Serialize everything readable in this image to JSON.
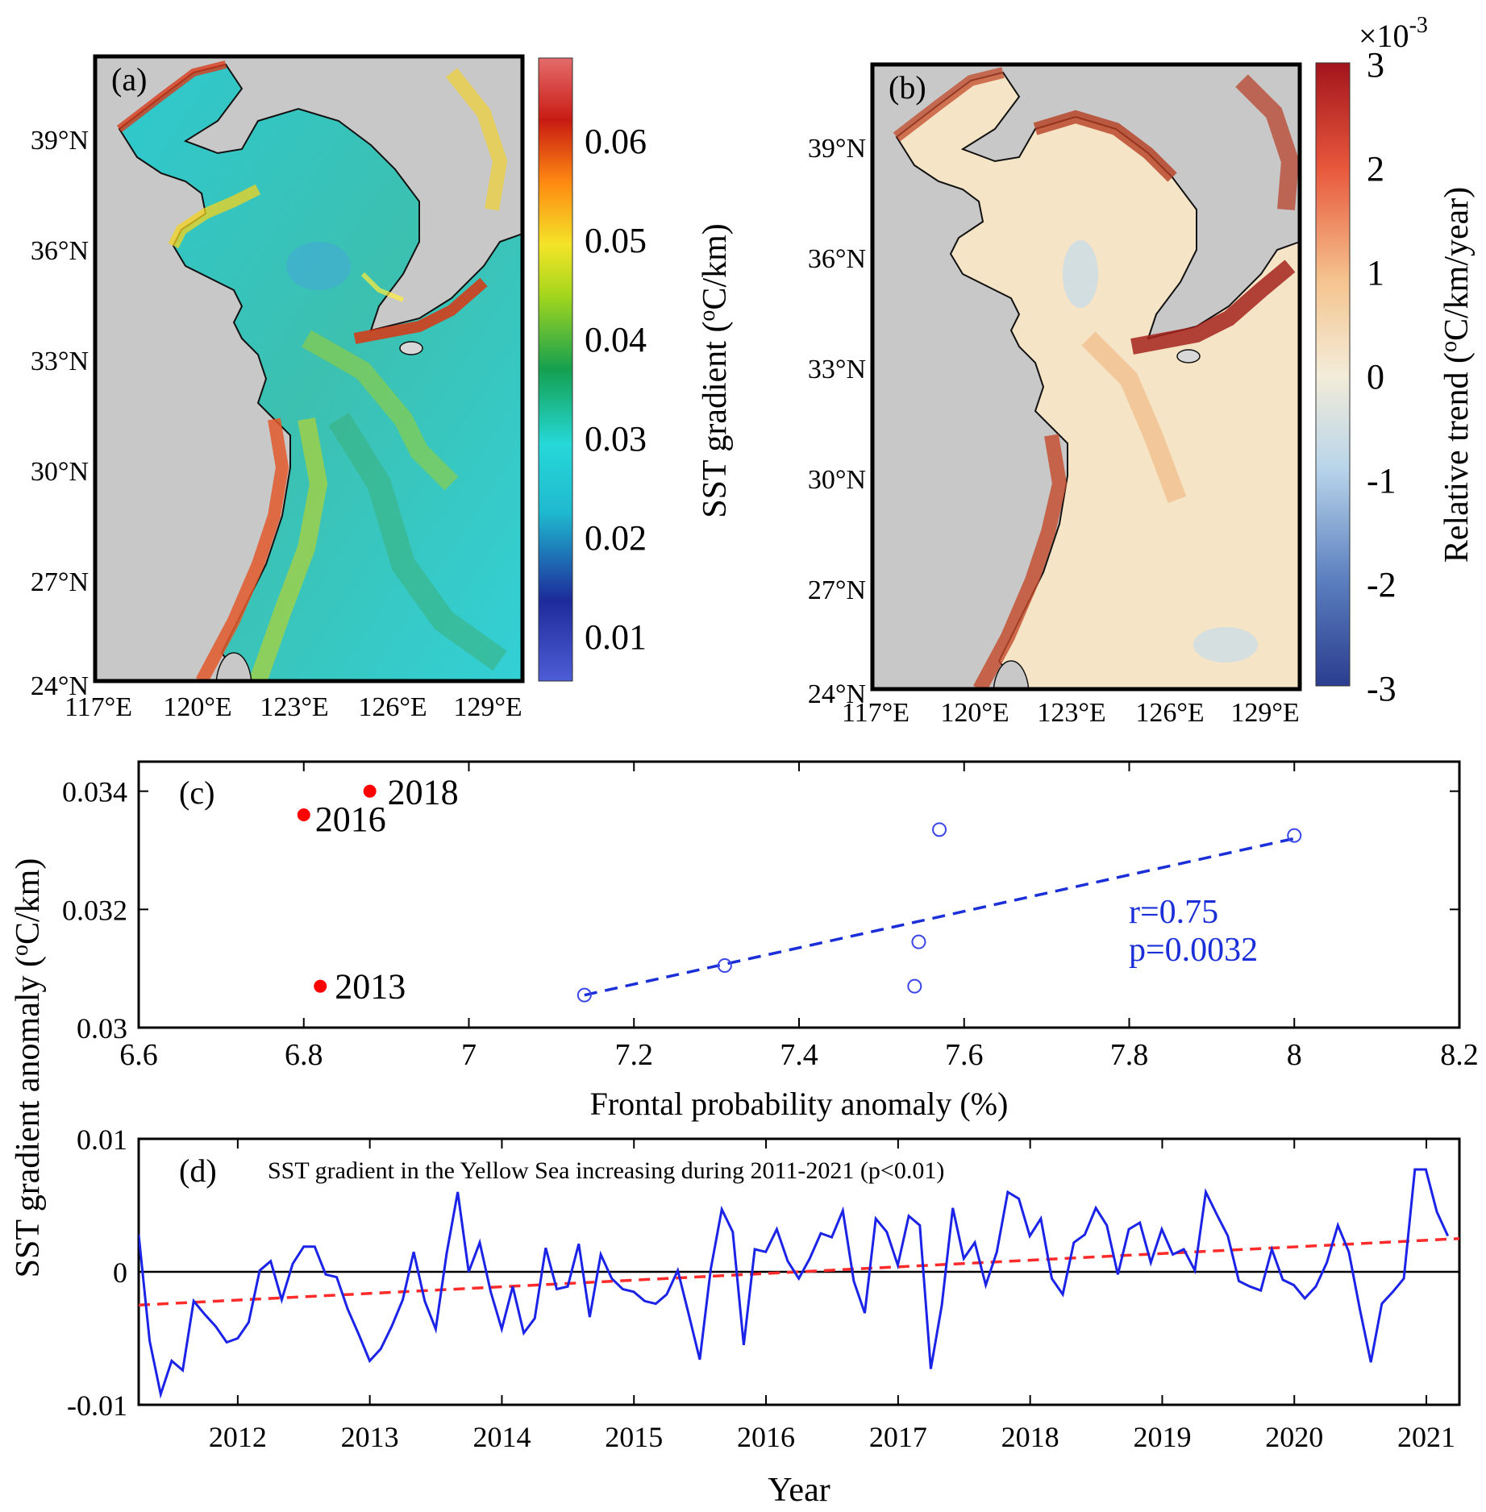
{
  "colors": {
    "land": "#c8c8c8",
    "scatter_open": "#3b46e6",
    "scatter_labeled": "#ff0000",
    "fit_line": "#1a2fd8",
    "series_line": "#1a23e6",
    "trend_line": "#ff2a2a",
    "text_blue": "#1a2fd8"
  },
  "panel_a": {
    "label": "(a)",
    "colorbar_title": "SST gradient (",
    "colorbar_title_sup": "o",
    "colorbar_title_end": "C/km)",
    "colorbar_ticks": [
      "0.06",
      "0.05",
      "0.04",
      "0.03",
      "0.02",
      "0.01"
    ],
    "lat_ticks": [
      "39°N",
      "36°N",
      "33°N",
      "30°N",
      "27°N",
      "24°N"
    ],
    "lon_ticks": [
      "117°E",
      "120°E",
      "123°E",
      "126°E",
      "129°E"
    ],
    "colormap_icon": "jet-colormap"
  },
  "panel_b": {
    "label": "(b)",
    "colorbar_title": "Relative trend (",
    "colorbar_title_sup": "o",
    "colorbar_title_end": "C/km/year)",
    "colorbar_multiplier": "×10",
    "colorbar_multiplier_exp": "-3",
    "colorbar_ticks": [
      "3",
      "2",
      "1",
      "0",
      "-1",
      "-2",
      "-3"
    ],
    "lat_ticks": [
      "39°N",
      "36°N",
      "33°N",
      "30°N",
      "27°N",
      "24°N"
    ],
    "lon_ticks": [
      "117°E",
      "120°E",
      "123°E",
      "126°E",
      "129°E"
    ],
    "colormap_icon": "diverging-red-blue-colormap"
  },
  "shared_ylabel": {
    "part1": "SST gradient anomaly (",
    "sup": "o",
    "part2": "C/km)"
  },
  "chart_data": [
    {
      "panel": "(c)",
      "type": "scatter",
      "xlabel": "Frontal probability anomaly (%)",
      "xlim": [
        6.6,
        8.2
      ],
      "ylim": [
        0.03,
        0.0345
      ],
      "xticks": [
        "6.6",
        "6.8",
        "7",
        "7.2",
        "7.4",
        "7.6",
        "7.8",
        "8",
        "8.2"
      ],
      "yticks": [
        "0.034",
        "0.032",
        "0.03"
      ],
      "labeled_points": [
        {
          "year": "2018",
          "x": 6.88,
          "y": 0.034
        },
        {
          "year": "2016",
          "x": 6.8,
          "y": 0.0336
        },
        {
          "year": "2013",
          "x": 6.82,
          "y": 0.0307
        }
      ],
      "open_points": [
        {
          "x": 7.14,
          "y": 0.03055
        },
        {
          "x": 7.31,
          "y": 0.03105
        },
        {
          "x": 7.54,
          "y": 0.0307
        },
        {
          "x": 7.545,
          "y": 0.03145
        },
        {
          "x": 7.57,
          "y": 0.03335
        },
        {
          "x": 8.0,
          "y": 0.03325
        }
      ],
      "fit": {
        "x": [
          7.14,
          8.0
        ],
        "y": [
          0.03055,
          0.0332
        ]
      },
      "stats": {
        "r": "r=0.75",
        "p": "p=0.0032"
      }
    },
    {
      "panel": "(d)",
      "type": "line",
      "title": "SST gradient in the Yellow Sea increasing during 2011-2021 (p<0.01)",
      "xlabel": "Year",
      "xlim": [
        2011.25,
        2021.25
      ],
      "ylim": [
        -0.01,
        0.01
      ],
      "xticks": [
        "2012",
        "2013",
        "2014",
        "2015",
        "2016",
        "2017",
        "2018",
        "2019",
        "2020",
        "2021"
      ],
      "yticks": [
        "0.01",
        "0",
        "-0.01"
      ],
      "start": 2011.25,
      "step": 0.0833,
      "values": [
        0.0028,
        -0.0052,
        -0.0092,
        -0.0067,
        -0.0074,
        -0.0022,
        -0.0032,
        -0.0041,
        -0.0053,
        -0.005,
        -0.0038,
        0.0001,
        0.0008,
        -0.0021,
        0.0006,
        0.0019,
        0.0019,
        -0.0002,
        -0.0004,
        -0.0028,
        -0.0047,
        -0.0067,
        -0.0058,
        -0.0041,
        -0.0021,
        0.0015,
        -0.0022,
        -0.0043,
        0.0014,
        0.006,
        0.0,
        0.0022,
        -0.0015,
        -0.0043,
        -0.0011,
        -0.0046,
        -0.0035,
        0.0018,
        -0.0013,
        -0.0011,
        0.0021,
        -0.0034,
        0.0013,
        -0.0005,
        -0.0013,
        -0.0015,
        -0.0022,
        -0.0024,
        -0.0017,
        0.0001,
        -0.0032,
        -0.0066,
        0.0002,
        0.0047,
        0.003,
        -0.0055,
        0.0017,
        0.0015,
        0.0032,
        0.0008,
        -0.0005,
        0.001,
        0.0029,
        0.0026,
        0.0046,
        -0.0007,
        -0.0031,
        0.004,
        0.003,
        0.0005,
        0.0042,
        0.0035,
        -0.0073,
        -0.0025,
        0.0048,
        0.001,
        0.0022,
        -0.001,
        0.0015,
        0.006,
        0.0055,
        0.0027,
        0.004,
        -0.0005,
        -0.0017,
        0.0022,
        0.0028,
        0.0048,
        0.0035,
        -0.0002,
        0.0032,
        0.0037,
        0.0007,
        0.0032,
        0.0013,
        0.0017,
        0.0001,
        0.006,
        0.0043,
        0.0027,
        -0.0007,
        -0.0011,
        -0.0014,
        0.0017,
        -0.0006,
        -0.001,
        -0.002,
        -0.0011,
        0.0007,
        0.0035,
        0.0015,
        -0.0028,
        -0.0068,
        -0.0024,
        -0.0015,
        -0.0005,
        0.0077,
        0.0077,
        0.0045,
        0.0027
      ],
      "trend": {
        "x": [
          2011.25,
          2021.25
        ],
        "y": [
          -0.0025,
          0.0025
        ]
      }
    }
  ]
}
